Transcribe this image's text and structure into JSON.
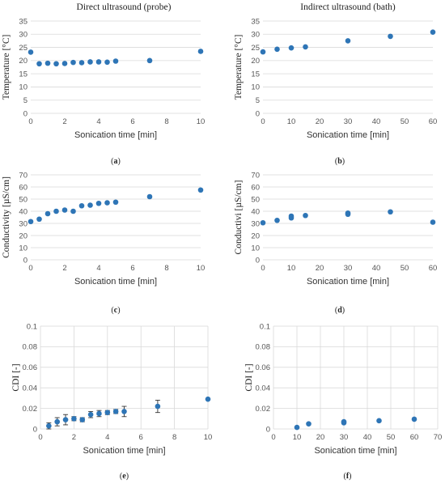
{
  "colors": {
    "marker": "#2e75b6",
    "grid": "#d9d9d9",
    "error_bar": "#333333"
  },
  "chart_data": [
    {
      "type": "scatter",
      "title": "Direct ultrasound (probe)",
      "caption": "a",
      "xlabel": "Sonication time [min]",
      "ylabel": "Temperature [°C]",
      "xlim": [
        0,
        10
      ],
      "xticks": [
        0,
        2,
        4,
        6,
        8,
        10
      ],
      "ylim": [
        0,
        35
      ],
      "yticks": [
        0,
        5,
        10,
        15,
        20,
        25,
        30,
        35
      ],
      "grid": "horizontal",
      "x": [
        0,
        0.5,
        1,
        1.5,
        2,
        2.5,
        3,
        3.5,
        4,
        4.5,
        5,
        7,
        10
      ],
      "y": [
        23.2,
        18.8,
        19.0,
        18.8,
        18.9,
        19.3,
        19.2,
        19.5,
        19.5,
        19.4,
        19.8,
        20.0,
        23.5
      ]
    },
    {
      "type": "scatter",
      "title": "Indirect ultrasound (bath)",
      "caption": "b",
      "xlabel": "Sonication time [min]",
      "ylabel": "Temperature [°C]",
      "xlim": [
        0,
        60
      ],
      "xticks": [
        0,
        10,
        20,
        30,
        40,
        50,
        60
      ],
      "ylim": [
        0,
        35
      ],
      "yticks": [
        0,
        5,
        10,
        15,
        20,
        25,
        30,
        35
      ],
      "grid": "horizontal",
      "x": [
        0,
        5,
        10,
        15,
        30,
        45,
        60
      ],
      "y": [
        23.3,
        24.3,
        24.8,
        25.2,
        27.5,
        29.2,
        30.8
      ]
    },
    {
      "type": "scatter",
      "title": "",
      "caption": "c",
      "xlabel": "Sonication time [min]",
      "ylabel": "Conductivity [µS/cm]",
      "xlim": [
        0,
        10
      ],
      "xticks": [
        0,
        2,
        4,
        6,
        8,
        10
      ],
      "ylim": [
        0,
        70
      ],
      "yticks": [
        0,
        10,
        20,
        30,
        40,
        50,
        60,
        70
      ],
      "grid": "horizontal",
      "x": [
        0,
        0.5,
        1,
        1.5,
        2,
        2.5,
        3,
        3.5,
        4,
        4.5,
        5,
        7,
        10
      ],
      "y": [
        31.5,
        33.5,
        38,
        40,
        41,
        40,
        44.5,
        45,
        46.5,
        47,
        47.5,
        52,
        57.5
      ]
    },
    {
      "type": "scatter",
      "title": "",
      "caption": "d",
      "xlabel": "Sonication time [min]",
      "ylabel": "Conductivi [µS/cm]",
      "xlim": [
        0,
        60
      ],
      "xticks": [
        0,
        10,
        20,
        30,
        40,
        50,
        60
      ],
      "ylim": [
        0,
        70
      ],
      "yticks": [
        0,
        10,
        20,
        30,
        40,
        50,
        60,
        70
      ],
      "grid": "horizontal",
      "x": [
        0,
        5,
        10,
        10,
        15,
        30,
        30,
        45,
        60
      ],
      "y": [
        30.5,
        32.5,
        34.5,
        36,
        36.5,
        37.5,
        38.5,
        39.5,
        31
      ]
    },
    {
      "type": "scatter",
      "title": "",
      "caption": "e",
      "xlabel": "Sonication time [min]",
      "ylabel": "CDI [-]",
      "xlim": [
        0,
        10
      ],
      "xticks": [
        0,
        2,
        4,
        6,
        8,
        10
      ],
      "ylim": [
        0,
        0.1
      ],
      "yticks": [
        0,
        0.02,
        0.04,
        0.06,
        0.08,
        0.1
      ],
      "ytick_labels": [
        "0",
        "0.02",
        "0.04",
        "0.06",
        "0.08",
        "0.1"
      ],
      "grid": "both",
      "x": [
        0.5,
        1,
        1.5,
        2,
        2.5,
        3,
        3.5,
        4,
        4.5,
        5,
        7,
        10
      ],
      "y": [
        0.003,
        0.007,
        0.009,
        0.01,
        0.009,
        0.014,
        0.015,
        0.016,
        0.017,
        0.017,
        0.022,
        0.029
      ],
      "yerr": [
        0.003,
        0.004,
        0.005,
        0.002,
        0.002,
        0.003,
        0.003,
        0.002,
        0.002,
        0.005,
        0.006,
        0
      ]
    },
    {
      "type": "scatter",
      "title": "",
      "caption": "f",
      "xlabel": "Sonication time [min]",
      "ylabel": "CDI [-]",
      "xlim": [
        0,
        70
      ],
      "xticks": [
        0,
        10,
        20,
        30,
        40,
        50,
        60,
        70
      ],
      "ylim": [
        0,
        0.1
      ],
      "yticks": [
        0,
        0.02,
        0.04,
        0.06,
        0.08,
        0.1
      ],
      "ytick_labels": [
        "0",
        "0.02",
        "0.04",
        "0.06",
        "0.08",
        "0.1"
      ],
      "grid": "both",
      "x": [
        10,
        15,
        30,
        30,
        45,
        60
      ],
      "y": [
        0.0015,
        0.005,
        0.006,
        0.007,
        0.008,
        0.0095
      ],
      "yerr": [
        0.0005,
        0.001,
        0.0008,
        0.0008,
        0.0008,
        0.0008
      ]
    }
  ]
}
